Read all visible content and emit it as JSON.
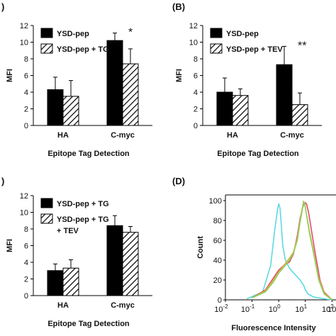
{
  "chart_data": [
    {
      "panel_label": ")",
      "type": "bar",
      "title": "",
      "xlabel": "Epitope Tag Detection",
      "ylabel": "MFI",
      "ylim": [
        0,
        12
      ],
      "yticks": [
        "0",
        "2",
        "4",
        "6",
        "8",
        "10",
        "12"
      ],
      "categories": [
        "HA",
        "C-myc"
      ],
      "legend": "top-left",
      "series": [
        {
          "name": "YSD-pep",
          "fill": "solid",
          "color": "#000000",
          "values": [
            4.3,
            10.2
          ],
          "errors": [
            1.5,
            0.9
          ]
        },
        {
          "name": "YSD-pep + TG",
          "fill": "hatched",
          "color": "#000000",
          "values": [
            3.5,
            7.4
          ],
          "errors": [
            1.9,
            1.8
          ]
        }
      ],
      "annotations": [
        {
          "category": "C-myc",
          "text": "*"
        }
      ]
    },
    {
      "panel_label": "(B)",
      "type": "bar",
      "title": "",
      "xlabel": "Epitope Tag Detection",
      "ylabel": "MFI",
      "ylim": [
        0,
        12
      ],
      "yticks": [
        "0",
        "2",
        "4",
        "6",
        "8",
        "10",
        "12"
      ],
      "categories": [
        "HA",
        "C-myc"
      ],
      "legend": "top-left",
      "series": [
        {
          "name": "YSD-pep",
          "fill": "solid",
          "color": "#000000",
          "values": [
            4.0,
            7.3
          ],
          "errors": [
            1.7,
            2.2
          ]
        },
        {
          "name": "YSD-pep + TEV",
          "fill": "hatched",
          "color": "#000000",
          "values": [
            3.6,
            2.5
          ],
          "errors": [
            0.8,
            1.4
          ]
        }
      ],
      "annotations": [
        {
          "category": "C-myc",
          "text": "**"
        }
      ]
    },
    {
      "panel_label": ")",
      "type": "bar",
      "title": "",
      "xlabel": "Epitope Tag Detection",
      "ylabel": "MFI",
      "ylim": [
        0,
        12
      ],
      "yticks": [
        "0",
        "2",
        "4",
        "6",
        "8",
        "10",
        "12"
      ],
      "categories": [
        "HA",
        "C-myc"
      ],
      "legend": "top-left",
      "series": [
        {
          "name": "YSD-pep + TG",
          "fill": "solid",
          "color": "#000000",
          "values": [
            3.0,
            8.4
          ],
          "errors": [
            0.8,
            1.2
          ]
        },
        {
          "name": "YSD-pep + TG\n+ TEV",
          "fill": "hatched",
          "color": "#000000",
          "values": [
            3.3,
            7.6
          ],
          "errors": [
            1.0,
            0.7
          ]
        }
      ],
      "annotations": []
    },
    {
      "panel_label": "(D)",
      "type": "line",
      "title": "",
      "xlabel": "Fluorescence Intensity",
      "ylabel": "Count",
      "xscale": "log",
      "xlim": [
        -2,
        3
      ],
      "ylim": [
        0,
        100
      ],
      "yticks": [
        "0",
        "20",
        "40",
        "60",
        "80",
        "100"
      ],
      "xtick_base": "10",
      "xtick_exponents": [
        "-2",
        "-1",
        "0",
        "1",
        "2"
      ],
      "extra_tick_label": "10³",
      "series": [
        {
          "color": "#5ed8e0",
          "x": [
            -1.2,
            -0.6,
            -0.3,
            -0.15,
            -0.05,
            0.0,
            0.05,
            0.1,
            0.15,
            0.25,
            0.4,
            0.6,
            0.8,
            0.95,
            1.0,
            1.1,
            1.3,
            1.5,
            1.7,
            2.0
          ],
          "y": [
            1,
            8,
            35,
            70,
            90,
            97,
            92,
            75,
            55,
            40,
            32,
            26,
            20,
            14,
            10,
            6,
            3,
            2,
            1,
            0
          ]
        },
        {
          "color": "#e24a6a",
          "x": [
            -1.0,
            -0.5,
            -0.2,
            0.0,
            0.2,
            0.4,
            0.55,
            0.7,
            0.8,
            0.9,
            0.95,
            1.0,
            1.05,
            1.12,
            1.2,
            1.35,
            1.55,
            1.7,
            2.0
          ],
          "y": [
            2,
            10,
            22,
            30,
            35,
            38,
            46,
            65,
            82,
            93,
            97,
            98,
            96,
            88,
            75,
            50,
            20,
            8,
            0
          ]
        },
        {
          "color": "#d8b441",
          "x": [
            -1.0,
            -0.5,
            -0.2,
            0.0,
            0.2,
            0.4,
            0.55,
            0.7,
            0.8,
            0.88,
            0.93,
            0.98,
            1.05,
            1.15,
            1.3,
            1.5,
            1.7,
            2.0
          ],
          "y": [
            2,
            9,
            20,
            28,
            35,
            42,
            48,
            62,
            80,
            92,
            98,
            96,
            85,
            70,
            50,
            22,
            7,
            0
          ]
        },
        {
          "color": "#8dd25e",
          "x": [
            -1.0,
            -0.5,
            -0.2,
            0.0,
            0.2,
            0.4,
            0.55,
            0.7,
            0.8,
            0.88,
            0.93,
            0.98,
            1.05,
            1.15,
            1.3,
            1.5,
            1.7,
            2.0
          ],
          "y": [
            2,
            8,
            18,
            27,
            33,
            40,
            47,
            60,
            78,
            90,
            99,
            97,
            84,
            68,
            48,
            20,
            6,
            0
          ]
        }
      ]
    }
  ]
}
